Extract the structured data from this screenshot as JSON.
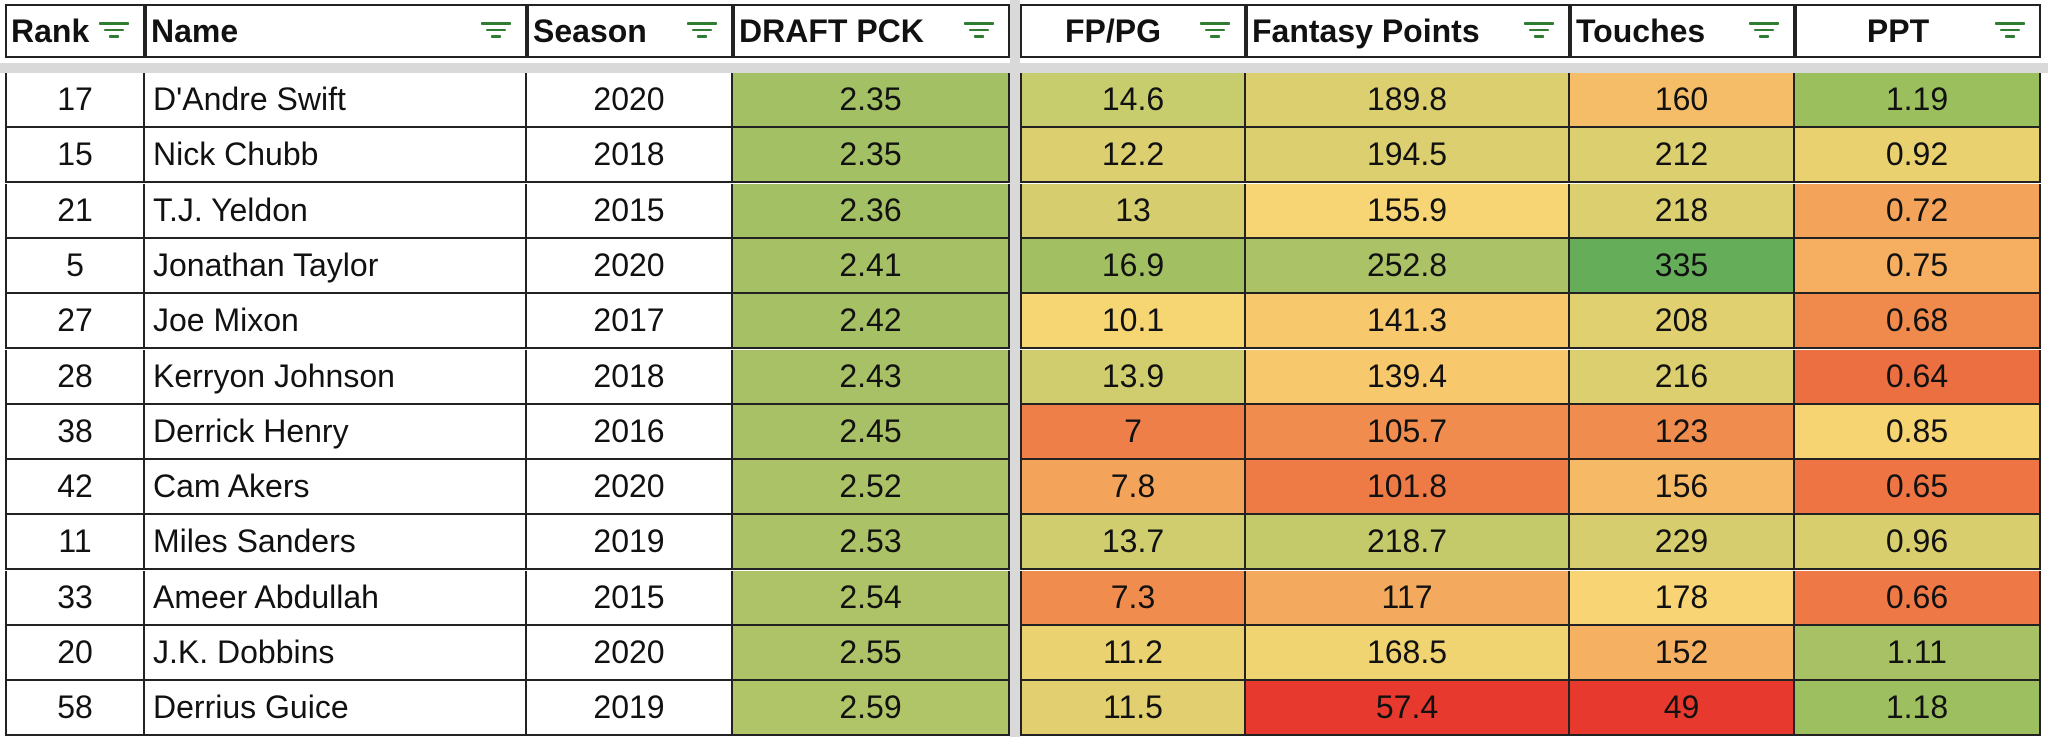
{
  "columns": [
    {
      "key": "rank",
      "label": "Rank",
      "filter_icon": "filter-icon"
    },
    {
      "key": "name",
      "label": "Name",
      "filter_icon": "filter-icon"
    },
    {
      "key": "season",
      "label": "Season",
      "filter_icon": "filter-icon"
    },
    {
      "key": "draft",
      "label": "DRAFT PCK",
      "filter_icon": "filter-icon"
    },
    {
      "key": "fppg",
      "label": "FP/PG",
      "filter_icon": "filter-icon"
    },
    {
      "key": "fp",
      "label": "Fantasy Points",
      "filter_icon": "filter-icon"
    },
    {
      "key": "touches",
      "label": "Touches",
      "filter_icon": "filter-icon"
    },
    {
      "key": "ppt",
      "label": "PPT",
      "filter_icon": "filter-icon"
    }
  ],
  "rows": [
    {
      "rank": "17",
      "name": "D'Andre Swift",
      "season": "2020",
      "draft": "2.35",
      "fppg": "14.6",
      "fp": "189.8",
      "touches": "160",
      "ppt": "1.19",
      "colors": {
        "draft": "#a3c064",
        "fppg": "#c7cc6c",
        "fp": "#dccf70",
        "touches": "#f6bd68",
        "ppt": "#9cbf5e"
      }
    },
    {
      "rank": "15",
      "name": "Nick Chubb",
      "season": "2018",
      "draft": "2.35",
      "fppg": "12.2",
      "fp": "194.5",
      "touches": "212",
      "ppt": "0.92",
      "colors": {
        "draft": "#a3c064",
        "fppg": "#dccf70",
        "fp": "#dccf70",
        "touches": "#dccf70",
        "ppt": "#e9d170"
      }
    },
    {
      "rank": "21",
      "name": "T.J. Yeldon",
      "season": "2015",
      "draft": "2.36",
      "fppg": "13",
      "fp": "155.9",
      "touches": "218",
      "ppt": "0.72",
      "colors": {
        "draft": "#a3c064",
        "fppg": "#d6ce6e",
        "fp": "#f8d574",
        "touches": "#dccf70",
        "ppt": "#f4a45a"
      }
    },
    {
      "rank": "5",
      "name": "Jonathan Taylor",
      "season": "2020",
      "draft": "2.41",
      "fppg": "16.9",
      "fp": "252.8",
      "touches": "335",
      "ppt": "0.75",
      "colors": {
        "draft": "#a6c165",
        "fppg": "#a2c062",
        "fp": "#abc266",
        "touches": "#66ad5a",
        "ppt": "#f6ae60"
      }
    },
    {
      "rank": "27",
      "name": "Joe Mixon",
      "season": "2017",
      "draft": "2.42",
      "fppg": "10.1",
      "fp": "141.3",
      "touches": "208",
      "ppt": "0.68",
      "colors": {
        "draft": "#a6c165",
        "fppg": "#f6d672",
        "fp": "#f8c86c",
        "touches": "#e0d070",
        "ppt": "#f08a4c"
      }
    },
    {
      "rank": "28",
      "name": "Kerryon Johnson",
      "season": "2018",
      "draft": "2.43",
      "fppg": "13.9",
      "fp": "139.4",
      "touches": "216",
      "ppt": "0.64",
      "colors": {
        "draft": "#a8c166",
        "fppg": "#d0cd6e",
        "fp": "#f8c86c",
        "touches": "#dccf70",
        "ppt": "#ec6f42"
      }
    },
    {
      "rank": "38",
      "name": "Derrick Henry",
      "season": "2016",
      "draft": "2.45",
      "fppg": "7",
      "fp": "105.7",
      "touches": "123",
      "ppt": "0.85",
      "colors": {
        "draft": "#a8c166",
        "fppg": "#ee7f48",
        "fp": "#f08c4e",
        "touches": "#f08c4e",
        "ppt": "#f6d472"
      }
    },
    {
      "rank": "42",
      "name": "Cam Akers",
      "season": "2020",
      "draft": "2.52",
      "fppg": "7.8",
      "fp": "101.8",
      "touches": "156",
      "ppt": "0.65",
      "colors": {
        "draft": "#abc267",
        "fppg": "#f4a45a",
        "fp": "#ee7a46",
        "touches": "#f6ba66",
        "ppt": "#ee7444"
      }
    },
    {
      "rank": "11",
      "name": "Miles Sanders",
      "season": "2019",
      "draft": "2.53",
      "fppg": "13.7",
      "fp": "218.7",
      "touches": "229",
      "ppt": "0.96",
      "colors": {
        "draft": "#abc267",
        "fppg": "#d0cd6e",
        "fp": "#c4c96a",
        "touches": "#d6ce6e",
        "ppt": "#d8ce6e"
      }
    },
    {
      "rank": "33",
      "name": "Ameer Abdullah",
      "season": "2015",
      "draft": "2.54",
      "fppg": "7.3",
      "fp": "117",
      "touches": "178",
      "ppt": "0.66",
      "colors": {
        "draft": "#aec368",
        "fppg": "#f08c4e",
        "fp": "#f4aa5e",
        "touches": "#f8d474",
        "ppt": "#ee7846"
      }
    },
    {
      "rank": "20",
      "name": "J.K. Dobbins",
      "season": "2020",
      "draft": "2.55",
      "fppg": "11.2",
      "fp": "168.5",
      "touches": "152",
      "ppt": "1.11",
      "colors": {
        "draft": "#aec368",
        "fppg": "#ead270",
        "fp": "#f0d472",
        "touches": "#f6b062",
        "ppt": "#a8c164"
      }
    },
    {
      "rank": "58",
      "name": "Derrius Guice",
      "season": "2019",
      "draft": "2.59",
      "fppg": "11.5",
      "fp": "57.4",
      "touches": "49",
      "ppt": "1.18",
      "colors": {
        "draft": "#b0c468",
        "fppg": "#e2d070",
        "fp": "#e8392e",
        "touches": "#e8392e",
        "ppt": "#9ebf5f"
      }
    }
  ]
}
